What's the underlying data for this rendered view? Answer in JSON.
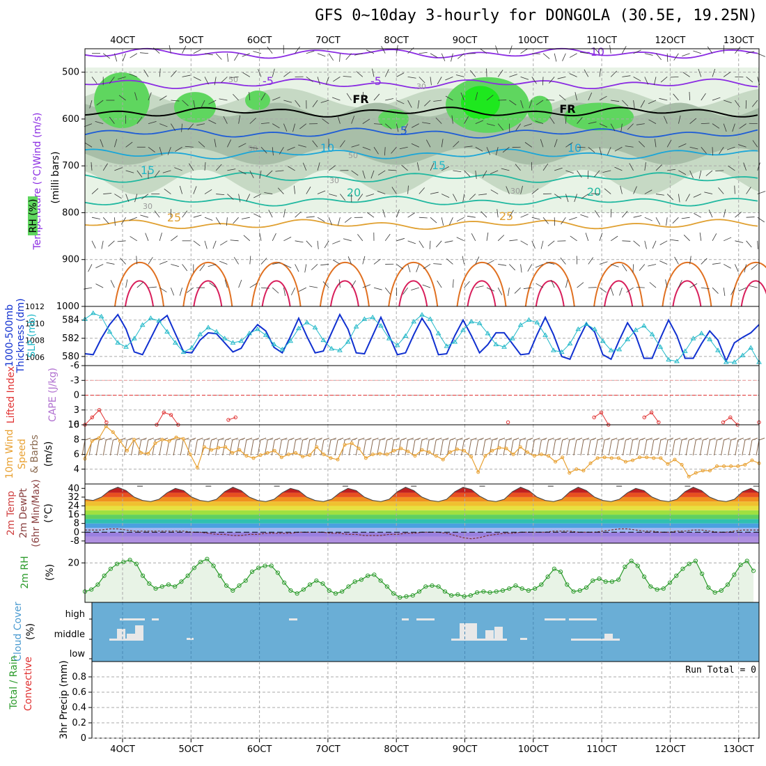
{
  "title": "GFS 0~10day 3-hourly for DONGOLA (30.5E, 19.25N)",
  "colors": {
    "temp_cold": "#8a2be2",
    "temp_mid": "#1e5cd6",
    "temp_cool": "#1aa6d8",
    "temp_warm": "#20b8a0",
    "temp_hot": "#e0a030",
    "temp_hotter": "#e07020",
    "temp_hottest": "#d81e5b",
    "rh_light": "#e8f3e6",
    "rh_mid": "#c6d9c4",
    "rh_dark": "#a8bea8",
    "rh_green": "#5fd65f",
    "rh_bright": "#1ee81e",
    "thickness": "#1030d0",
    "slp": "#20b8c8",
    "lifted": "#e03030",
    "wind10": "#e8a030",
    "rh2m": "#2a9a2a",
    "cloud_bg": "#6aaed6",
    "cloud_fg": "#e8e8e8"
  },
  "chart_data": [
    {
      "type": "time-height",
      "name": "upper_air",
      "ylabel_parts": [
        "Temperature (°C)",
        "Wind (m/s)",
        "(milli bars)",
        "RH (%)"
      ],
      "y_ticks": [
        "500",
        "600",
        "700",
        "800",
        "900",
        "1000"
      ],
      "ylim": [
        450,
        1000
      ],
      "x_ticks": [
        "4OCT",
        "5OCT",
        "6OCT",
        "7OCT",
        "8OCT",
        "9OCT",
        "10OCT",
        "11OCT",
        "12OCT",
        "13OCT"
      ],
      "contour_labels": [
        "-10",
        "-5",
        "-5",
        "FR",
        "FR",
        "5",
        "10",
        "10",
        "15",
        "15",
        "20",
        "20",
        "25",
        "25",
        "50",
        "50",
        "50",
        "30",
        "30",
        "30",
        "30"
      ],
      "isotherms": [
        {
          "label": "-10",
          "level": 460
        },
        {
          "label": "-5",
          "level": 525
        },
        {
          "label": "FR",
          "level": 585
        },
        {
          "label": "5",
          "level": 630
        },
        {
          "label": "10",
          "level": 675
        },
        {
          "label": "15",
          "level": 725
        },
        {
          "label": "20",
          "level": 775
        },
        {
          "label": "25",
          "level": 825
        }
      ]
    },
    {
      "type": "line",
      "name": "thickness_slp",
      "ylabel_parts": [
        "1000-500mb",
        "Thickness (dm)",
        "SLP (mb)"
      ],
      "left_ticks": [
        "584",
        "582",
        "580"
      ],
      "right_ticks": [
        "1012",
        "1010",
        "1008",
        "1006"
      ],
      "series": [
        {
          "name": "Thickness",
          "values": [
            580.3,
            580.2,
            582.0,
            583.5,
            584.6,
            583.0,
            580.5,
            580.2,
            582.0,
            583.8,
            584.5,
            582.5,
            580.5,
            580.4,
            581.8,
            582.6,
            582.5,
            581.5,
            580.5,
            580.9,
            582.4,
            583.5,
            582.8,
            581.0,
            580.4,
            582.2,
            584.2,
            582.2,
            580.4,
            580.6,
            582.6,
            584.6,
            583.0,
            580.4,
            580.3,
            582.3,
            584.3,
            582.3,
            580.2,
            580.4,
            582.4,
            584.2,
            582.8,
            580.2,
            580.3,
            582.3,
            584.0,
            582.3,
            580.4,
            581.3,
            582.6,
            582.6,
            581.4,
            580.2,
            580.3,
            582.4,
            584.3,
            582.4,
            580.0,
            579.7,
            581.8,
            583.6,
            582.7,
            580.2,
            579.7,
            581.8,
            583.7,
            582.3,
            579.8,
            579.8,
            582.0,
            584.0,
            582.3,
            579.8,
            579.8,
            581.4,
            582.8,
            581.8,
            579.5,
            581.5,
            582.1,
            582.6,
            583.5
          ]
        },
        {
          "name": "SLP",
          "values": [
            1010.5,
            1011.2,
            1010.8,
            1009.0,
            1007.7,
            1007.2,
            1008.2,
            1009.8,
            1010.6,
            1010.3,
            1009.0,
            1007.7,
            1006.6,
            1007.1,
            1008.7,
            1009.5,
            1009.0,
            1008.2,
            1007.7,
            1007.9,
            1008.8,
            1009.3,
            1008.6,
            1007.5,
            1006.9,
            1007.9,
            1009.4,
            1010.1,
            1009.5,
            1008.0,
            1007.0,
            1006.8,
            1007.8,
            1009.6,
            1010.5,
            1010.7,
            1009.7,
            1008.2,
            1007.4,
            1008.5,
            1010.2,
            1011.0,
            1010.5,
            1008.8,
            1007.3,
            1007.8,
            1009.2,
            1010.2,
            1010.0,
            1008.8,
            1007.5,
            1007.2,
            1008.2,
            1009.8,
            1010.4,
            1010.1,
            1008.6,
            1006.8,
            1006.6,
            1007.6,
            1009.3,
            1009.9,
            1009.3,
            1007.9,
            1006.8,
            1006.9,
            1008.1,
            1009.2,
            1009.7,
            1008.7,
            1007.2,
            1005.7,
            1005.5,
            1006.7,
            1008.2,
            1008.8,
            1008.1,
            1006.8,
            1005.4,
            1005.4,
            1006.2,
            1007.1,
            1005.4
          ]
        }
      ]
    },
    {
      "type": "line",
      "name": "lifted_index",
      "ylabel_parts": [
        "Lifted Index",
        "CAPE (J/kg)"
      ],
      "y_ticks": [
        "-6",
        "-3",
        "0",
        "3",
        "6"
      ],
      "ylim": [
        -6,
        6
      ],
      "values": [
        6.5,
        4.5,
        3.0,
        5.5,
        null,
        null,
        null,
        null,
        null,
        null,
        6.0,
        3.5,
        4.0,
        6.5,
        null,
        null,
        null,
        null,
        null,
        null,
        5.0,
        4.5,
        null,
        null,
        null,
        null,
        null,
        null,
        null,
        null,
        null,
        null,
        null,
        null,
        null,
        null,
        null,
        null,
        null,
        null,
        null,
        null,
        null,
        null,
        null,
        null,
        null,
        null,
        null,
        null,
        null,
        null,
        null,
        null,
        null,
        null,
        null,
        null,
        null,
        5.5,
        null,
        null,
        null,
        null,
        null,
        null,
        null,
        null,
        null,
        null,
        null,
        4.5,
        3.5,
        6.0,
        null,
        null,
        null,
        null,
        4.5,
        3.5,
        5.5,
        null,
        null,
        null,
        null,
        null,
        null,
        null,
        null,
        5.5,
        4.5,
        6.0,
        null,
        null,
        5.5
      ]
    },
    {
      "type": "line",
      "name": "wind10m",
      "ylabel_parts": [
        "10m Wind",
        "Speed",
        "& Barbs",
        "(m/s)"
      ],
      "y_ticks": [
        "10",
        "8",
        "6",
        "4"
      ],
      "ylim": [
        2,
        10
      ],
      "values": [
        5.4,
        7.8,
        8.2,
        9.8,
        9.0,
        7.8,
        6.5,
        8.0,
        6.2,
        6.1,
        7.5,
        8.0,
        7.8,
        8.3,
        8.1,
        6.0,
        4.2,
        7.0,
        6.6,
        6.9,
        7.0,
        6.2,
        6.6,
        5.8,
        5.5,
        5.9,
        6.2,
        6.5,
        5.6,
        6.0,
        6.2,
        5.7,
        5.9,
        7.0,
        6.0,
        5.5,
        5.3,
        7.3,
        7.5,
        6.8,
        5.5,
        6.0,
        6.1,
        6.0,
        6.5,
        6.8,
        6.4,
        5.8,
        6.6,
        6.3,
        5.8,
        5.3,
        6.3,
        6.7,
        6.5,
        5.7,
        3.6,
        5.8,
        6.5,
        6.9,
        6.8,
        6.0,
        7.0,
        6.3,
        5.8,
        6.0,
        5.8,
        5.0,
        5.6,
        3.5,
        4.0,
        3.8,
        4.8,
        5.5,
        5.6,
        5.5,
        5.5,
        5.0,
        5.2,
        5.6,
        5.6,
        5.5,
        5.5,
        4.7,
        5.3,
        4.6,
        3.0,
        3.5,
        3.8,
        3.8,
        4.4,
        4.4,
        4.4,
        4.4,
        4.6,
        5.2,
        4.8
      ]
    },
    {
      "type": "area",
      "name": "temp2m",
      "ylabel_parts": [
        "2m Temp",
        "2m DewPt",
        "(6hr Min/Max)",
        "(°C)"
      ],
      "y_ticks": [
        "40",
        "32",
        "24",
        "16",
        "8",
        "0",
        "-8"
      ],
      "ylim": [
        -10,
        44
      ],
      "values": [
        30,
        29,
        32,
        38,
        41,
        38,
        32,
        29,
        28,
        30,
        36,
        40,
        38,
        32,
        29,
        28,
        30,
        37,
        41,
        38,
        32,
        29,
        28,
        30,
        36,
        40,
        38,
        32,
        29,
        28,
        30,
        36,
        40,
        38,
        32,
        29,
        28,
        30,
        37,
        41,
        38,
        32,
        29,
        28,
        30,
        37,
        41,
        39,
        33,
        29,
        28,
        30,
        37,
        41,
        38,
        32,
        29,
        28,
        30,
        37,
        41,
        38,
        32,
        29,
        28,
        30,
        36,
        40,
        38,
        32,
        29,
        28,
        30,
        37,
        41,
        38,
        32,
        29,
        28,
        30,
        37,
        40,
        36
      ],
      "dewpoint": [
        2,
        2,
        2,
        3,
        3,
        2,
        1,
        1,
        1,
        1,
        1,
        1,
        1,
        0,
        0,
        -1,
        -2,
        -2,
        -3,
        -3,
        -2,
        -2,
        -1,
        -1,
        -1,
        -1,
        0,
        0,
        0,
        0,
        -1,
        -1,
        -2,
        -2,
        -3,
        -3,
        -3,
        -2,
        -2,
        -1,
        -1,
        0,
        0,
        0,
        -1,
        -3,
        -5,
        -6,
        -5,
        -3,
        -2,
        -1,
        -1,
        0,
        0,
        0,
        0,
        1,
        1,
        1,
        0,
        0,
        0,
        1,
        2,
        3,
        3,
        2,
        1,
        1,
        0,
        0,
        1,
        1,
        2,
        2,
        1,
        0,
        0,
        1,
        2,
        2,
        2
      ]
    },
    {
      "type": "line",
      "name": "rh2m",
      "ylabel_parts": [
        "2m RH",
        "(%)"
      ],
      "y_ticks": [
        "20"
      ],
      "ylim": [
        0,
        30
      ],
      "values": [
        5.5,
        6.5,
        9.0,
        13.5,
        17.0,
        19.5,
        20.5,
        21.5,
        19.5,
        13.5,
        9.5,
        7.0,
        8.0,
        9.0,
        8.0,
        10.5,
        13.5,
        17.5,
        20.5,
        22.0,
        18.5,
        13.5,
        8.5,
        6.0,
        8.5,
        11.0,
        15.5,
        17.5,
        18.5,
        18.5,
        15.0,
        10.0,
        6.0,
        4.5,
        6.5,
        9.0,
        11.0,
        9.5,
        6.0,
        4.5,
        5.5,
        8.0,
        10.5,
        11.5,
        13.5,
        14.0,
        11.0,
        8.0,
        4.5,
        2.5,
        3.0,
        3.5,
        5.5,
        8.0,
        8.5,
        8.0,
        5.5,
        3.5,
        4.0,
        3.0,
        3.5,
        5.0,
        5.5,
        5.0,
        5.5,
        6.0,
        7.0,
        8.5,
        7.0,
        6.0,
        7.0,
        9.0,
        13.0,
        17.0,
        15.5,
        9.0,
        5.5,
        6.0,
        7.5,
        11.0,
        12.0,
        10.5,
        10.5,
        11.5,
        18.0,
        21.0,
        18.5,
        13.0,
        8.0,
        6.5,
        7.0,
        10.0,
        13.5,
        17.0,
        19.5,
        21.0,
        14.5,
        7.5,
        5.0,
        6.0,
        9.0,
        14.0,
        19.0,
        21.0,
        16.0
      ]
    },
    {
      "type": "table",
      "name": "cloud_cover",
      "ylabel_parts": [
        "Cloud Cover",
        "(%)"
      ],
      "y_ticks": [
        "high",
        "middle",
        "low"
      ]
    },
    {
      "type": "line",
      "name": "precip",
      "ylabel_parts": [
        "Total / Rain",
        "Convective",
        "3hr Precip (mm)"
      ],
      "y_ticks": [
        "0.8",
        "0.6",
        "0.4",
        "0.2",
        "0"
      ],
      "ylim": [
        0,
        1
      ],
      "run_total": "Run Total = 0",
      "x_ticks": [
        "4OCT",
        "5OCT",
        "6OCT",
        "7OCT",
        "8OCT",
        "9OCT",
        "10OCT",
        "11OCT",
        "12OCT",
        "13OCT"
      ]
    }
  ]
}
